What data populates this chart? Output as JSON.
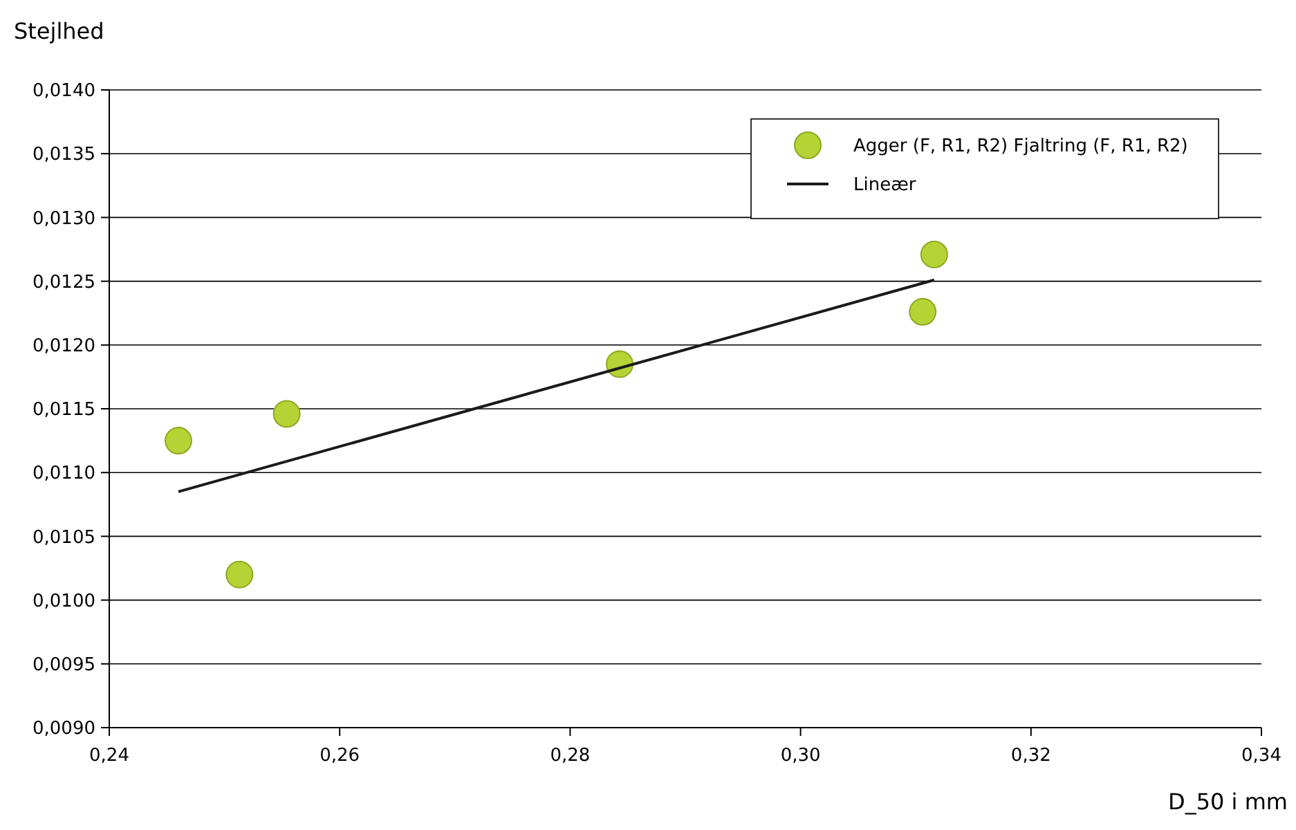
{
  "chart_data": {
    "type": "scatter",
    "ylabel": "Stejlhed",
    "xlabel": "D_50 i mm",
    "xlim": [
      0.24,
      0.34
    ],
    "xticks": [
      {
        "value": 0.24,
        "label": "0,24"
      },
      {
        "value": 0.26,
        "label": "0,26"
      },
      {
        "value": 0.28,
        "label": "0,28"
      },
      {
        "value": 0.3,
        "label": "0,30"
      },
      {
        "value": 0.32,
        "label": "0,32"
      },
      {
        "value": 0.34,
        "label": "0,34"
      }
    ],
    "ylim": [
      0.009,
      0.014
    ],
    "yticks": [
      {
        "value": 0.009,
        "label": "0,0090"
      },
      {
        "value": 0.0095,
        "label": "0,0095"
      },
      {
        "value": 0.01,
        "label": "0,0100"
      },
      {
        "value": 0.0105,
        "label": "0,0105"
      },
      {
        "value": 0.011,
        "label": "0,0110"
      },
      {
        "value": 0.0115,
        "label": "0,0115"
      },
      {
        "value": 0.012,
        "label": "0,0120"
      },
      {
        "value": 0.0125,
        "label": "0,0125"
      },
      {
        "value": 0.013,
        "label": "0,0130"
      },
      {
        "value": 0.0135,
        "label": "0,0135"
      },
      {
        "value": 0.014,
        "label": "0,0140"
      }
    ],
    "grid": "y",
    "legend": "top right",
    "series": [
      {
        "name": "Agger (F, R1, R2) Fjaltring (F, R1, R2)",
        "marker": "circle",
        "color": "#b5d334",
        "x": [
          0.246,
          0.2513,
          0.2554,
          0.2843,
          0.3106,
          0.3116
        ],
        "values": [
          0.01125,
          0.0102,
          0.01146,
          0.01185,
          0.01226,
          0.01271
        ]
      },
      {
        "name": "Lineær",
        "type": "line",
        "marker": "none",
        "color": "#1a1a1a",
        "x": [
          0.246,
          0.3116
        ],
        "values": [
          0.01085,
          0.01251
        ]
      }
    ]
  }
}
